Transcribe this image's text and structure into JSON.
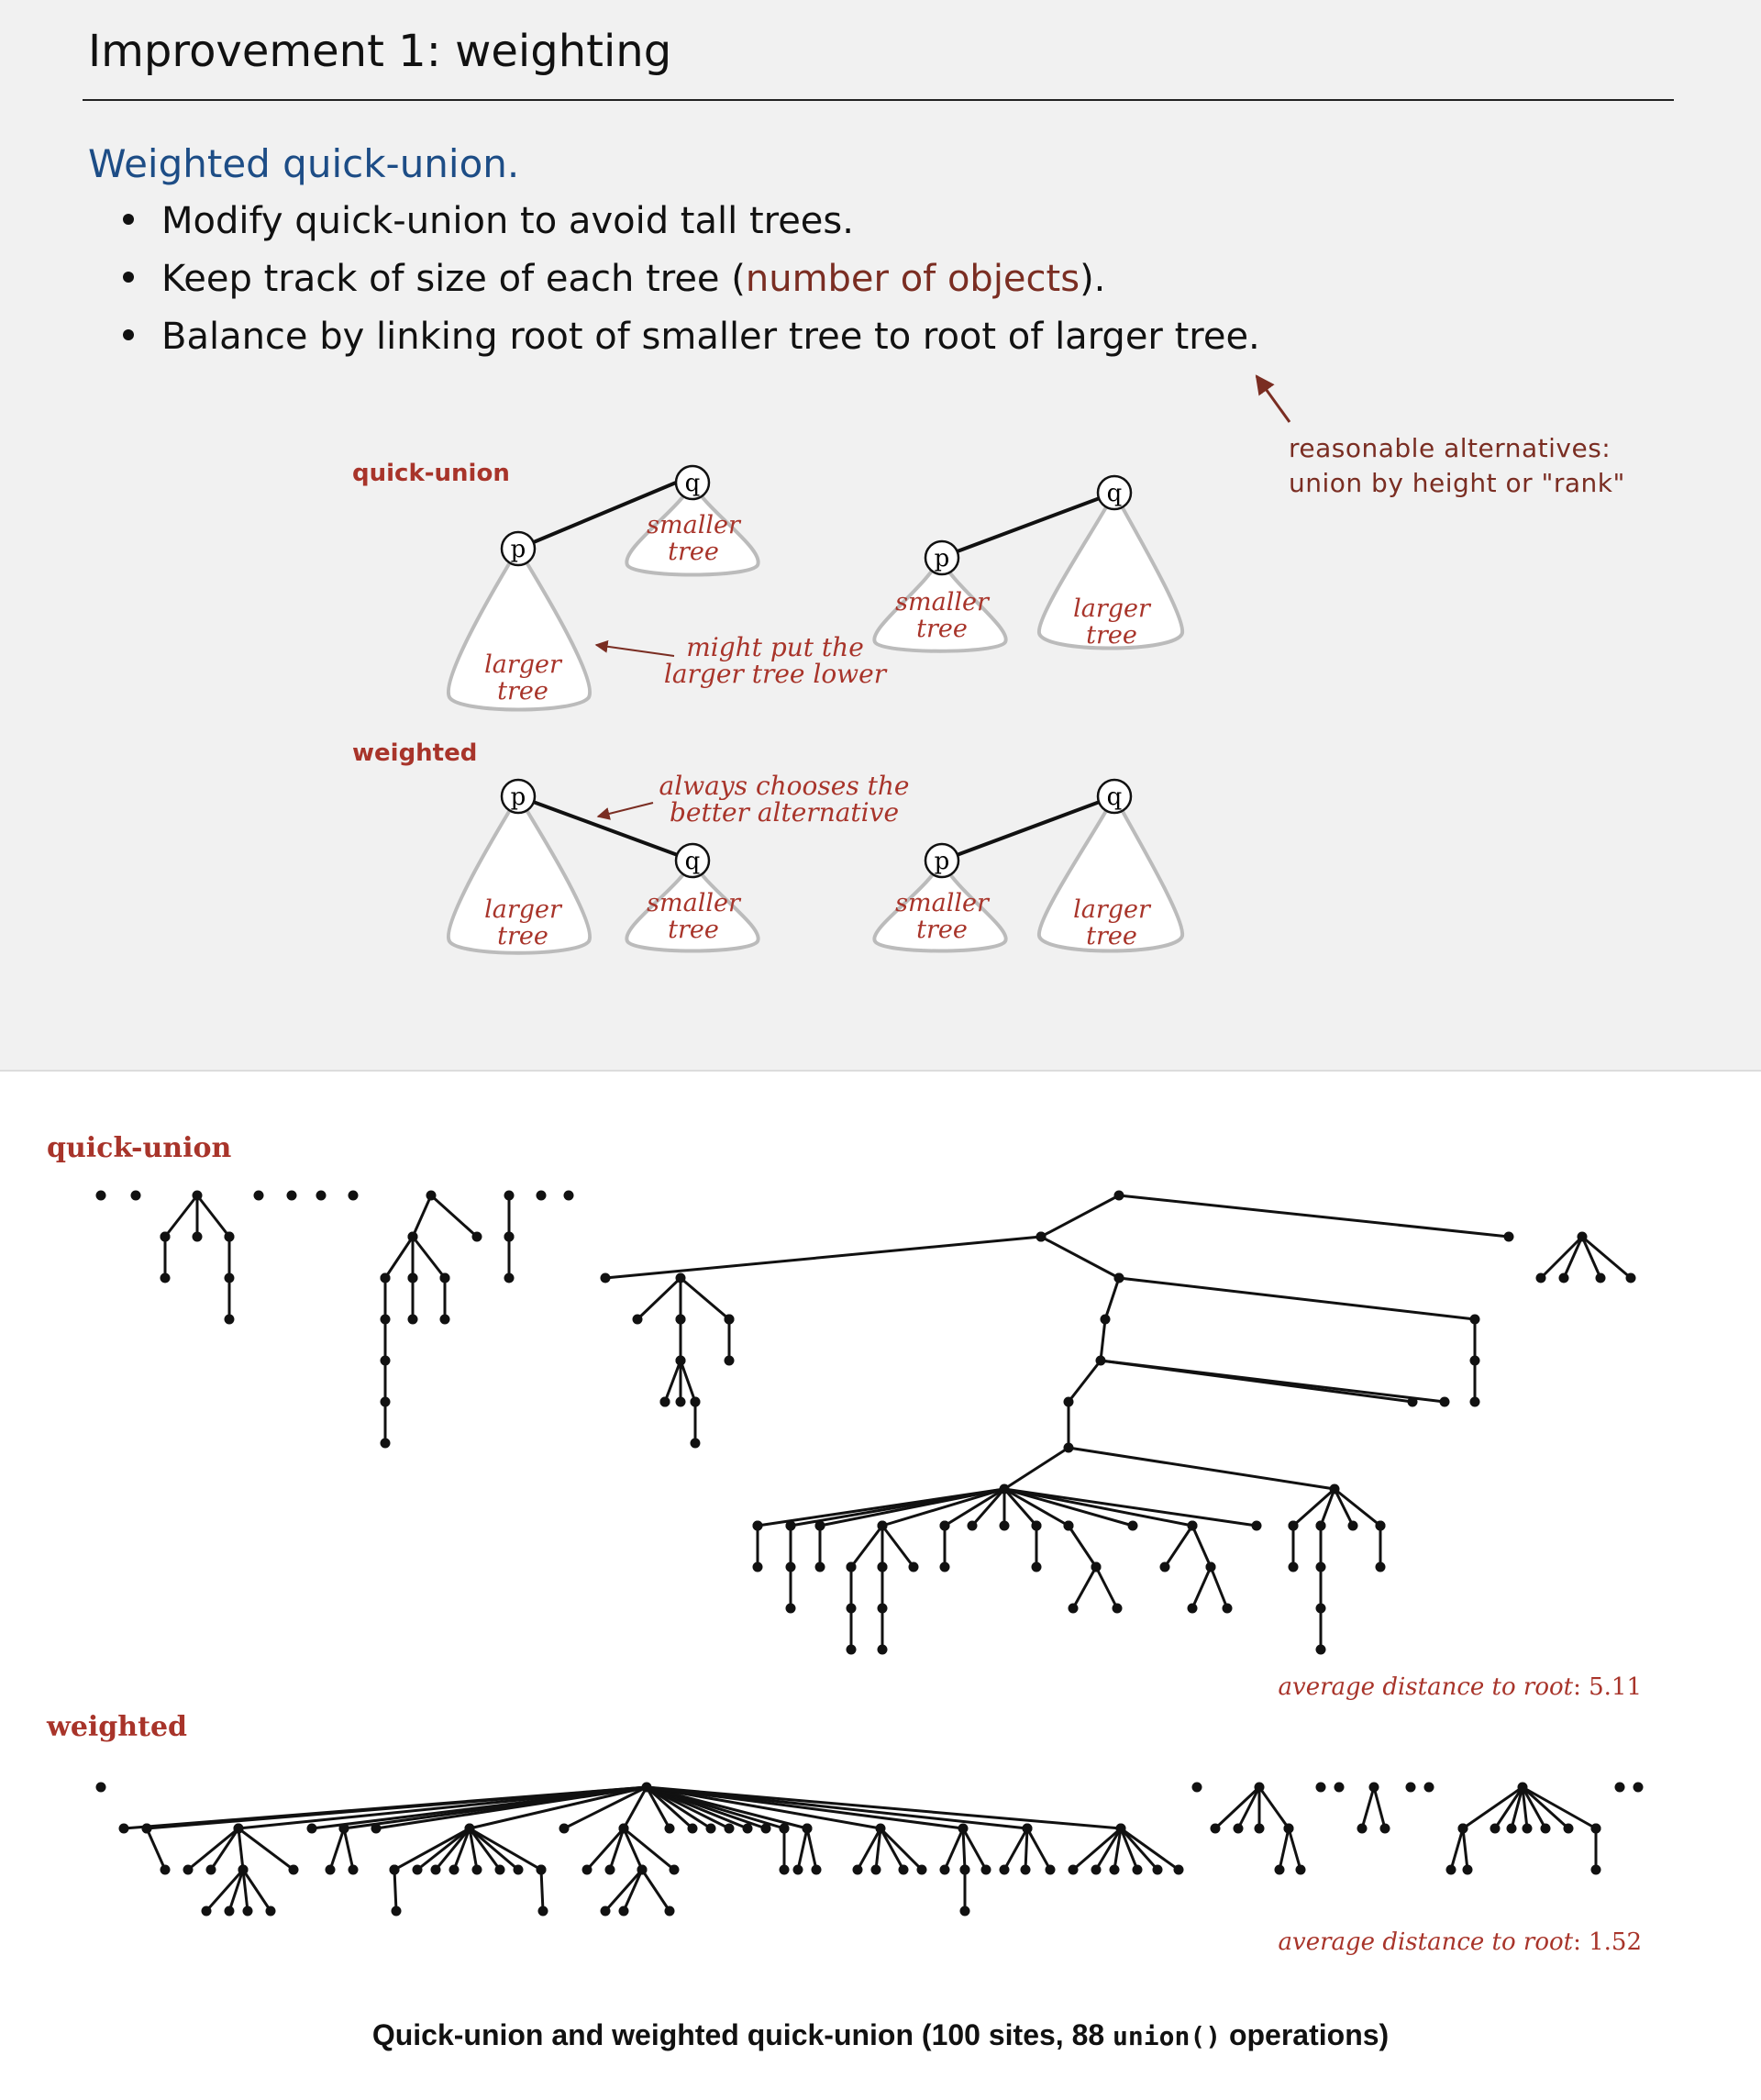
{
  "slide": {
    "title": "Improvement 1:  weighting",
    "heading": "Weighted quick-union.",
    "bullets": [
      {
        "text": "Modify quick-union to avoid tall trees."
      },
      {
        "text_before": "Keep track of size of each tree (",
        "highlight": "number of objects",
        "text_after": ")."
      },
      {
        "text": "Balance by linking root of smaller tree to root of larger tree."
      }
    ],
    "side_note": [
      "reasonable alternatives:",
      "union by height or \"rank\""
    ]
  },
  "diagram": {
    "quick_union_label": "quick-union",
    "weighted_label": "weighted",
    "node_p": "p",
    "node_q": "q",
    "larger_tree": [
      "larger",
      "tree"
    ],
    "smaller_tree": [
      "smaller",
      "tree"
    ],
    "annotation_quick_union": [
      "might put the",
      "larger tree lower"
    ],
    "annotation_weighted": [
      "always chooses the",
      "better alternative"
    ]
  },
  "forest": {
    "quick_union_label": "quick-union",
    "weighted_label": "weighted",
    "avg_label": "average distance to root",
    "quick_union_avg": "5.11",
    "weighted_avg": "1.52",
    "caption_before": "Quick-union and weighted quick-union (100 sites, 88 ",
    "caption_code": "union()",
    "caption_after": " operations)"
  },
  "colors": {
    "accent_red": "#a8342a",
    "heading_blue": "#1d4d86",
    "note_brown": "#7a2d22"
  }
}
